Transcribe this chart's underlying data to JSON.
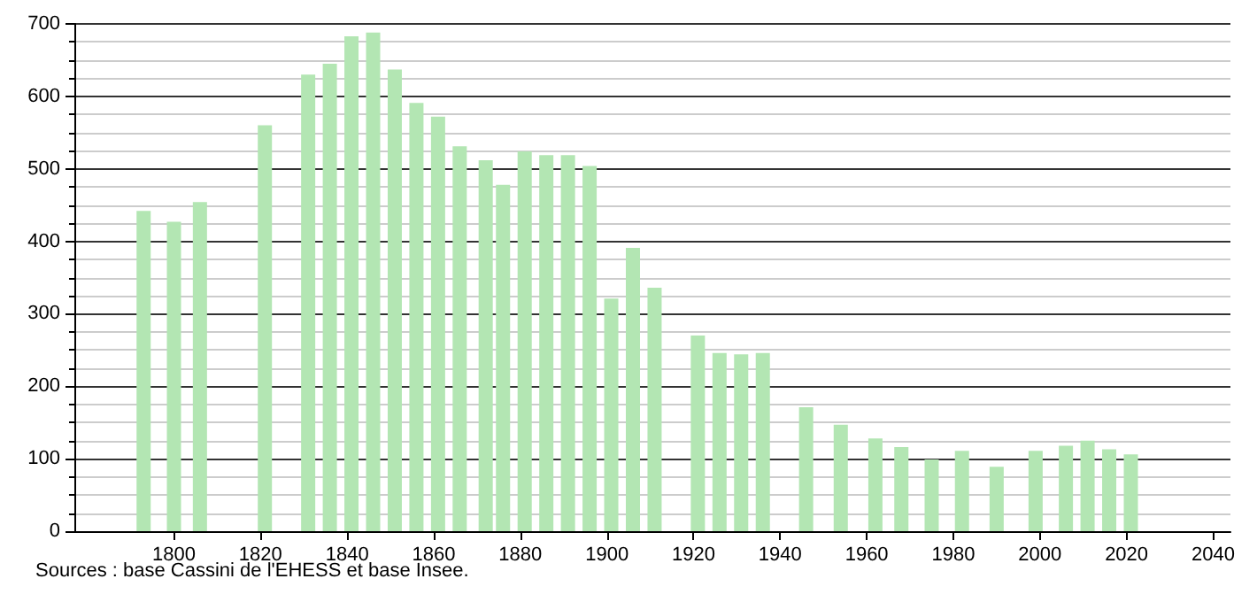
{
  "chart_data": {
    "type": "bar",
    "x": [
      1793,
      1800,
      1806,
      1821,
      1831,
      1836,
      1841,
      1846,
      1851,
      1856,
      1861,
      1866,
      1872,
      1876,
      1881,
      1886,
      1891,
      1896,
      1901,
      1906,
      1911,
      1921,
      1926,
      1931,
      1936,
      1946,
      1954,
      1962,
      1968,
      1975,
      1982,
      1990,
      1999,
      2006,
      2011,
      2016,
      2021
    ],
    "values": [
      442,
      427,
      454,
      560,
      630,
      645,
      683,
      688,
      637,
      591,
      572,
      531,
      512,
      478,
      524,
      519,
      519,
      504,
      321,
      391,
      336,
      270,
      246,
      244,
      246,
      171,
      147,
      128,
      116,
      99,
      111,
      89,
      111,
      118,
      125,
      113,
      106
    ],
    "color": "#b3e6b3",
    "xlim": [
      1777,
      2044
    ],
    "xticks": [
      1800,
      1820,
      1840,
      1860,
      1880,
      1900,
      1920,
      1940,
      1960,
      1980,
      2000,
      2020,
      2040
    ],
    "ylim": [
      0,
      700
    ],
    "yticks": [
      0,
      100,
      200,
      300,
      400,
      500,
      600,
      700
    ],
    "grid": "y",
    "annotations": [
      "Sources : base Cassini de l'EHESS et base Insee."
    ]
  }
}
